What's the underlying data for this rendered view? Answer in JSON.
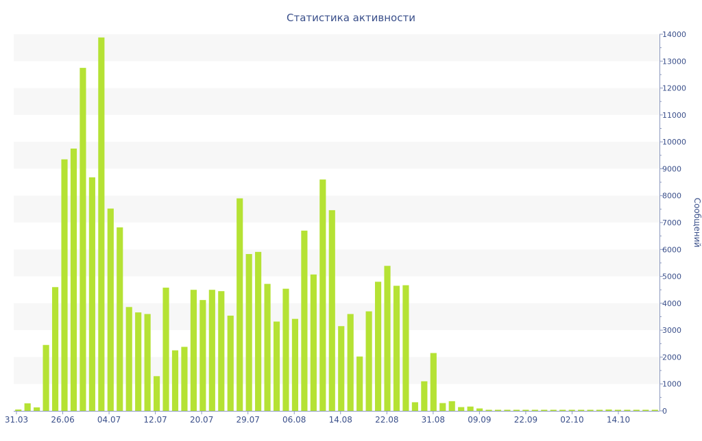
{
  "chart_data": {
    "type": "bar",
    "title": "Статистика активности",
    "ylabel": "Сообщений",
    "xlabel": "",
    "ylim": [
      0,
      14000
    ],
    "yticks": [
      0,
      1000,
      2000,
      3000,
      4000,
      5000,
      6000,
      7000,
      8000,
      9000,
      10000,
      11000,
      12000,
      13000,
      14000
    ],
    "xtick_labels": [
      "31.03",
      "26.06",
      "04.07",
      "12.07",
      "20.07",
      "29.07",
      "06.08",
      "14.08",
      "22.08",
      "31.08",
      "09.09",
      "22.09",
      "02.10",
      "14.10"
    ],
    "y_axis_position": "right",
    "grid": "horizontal alternating bands",
    "colors": {
      "bar": "#b5e234",
      "text": "#3a4f8a",
      "band": "#f7f7f7",
      "axis": "#8a97bd"
    },
    "values": [
      50,
      280,
      130,
      2450,
      4600,
      9350,
      9750,
      12750,
      8680,
      13880,
      7520,
      6820,
      3860,
      3660,
      3600,
      1290,
      4580,
      2250,
      2380,
      4500,
      4120,
      4500,
      4450,
      3540,
      7900,
      5830,
      5910,
      4720,
      3320,
      4540,
      3420,
      6700,
      5070,
      8600,
      7460,
      3150,
      3600,
      2020,
      3700,
      4800,
      5390,
      4650,
      4670,
      320,
      1100,
      2150,
      290,
      360,
      140,
      160,
      90,
      40,
      40,
      40,
      40,
      40,
      40,
      40,
      40,
      40,
      40,
      40,
      40,
      40,
      50,
      40,
      40,
      40,
      40,
      40
    ]
  }
}
